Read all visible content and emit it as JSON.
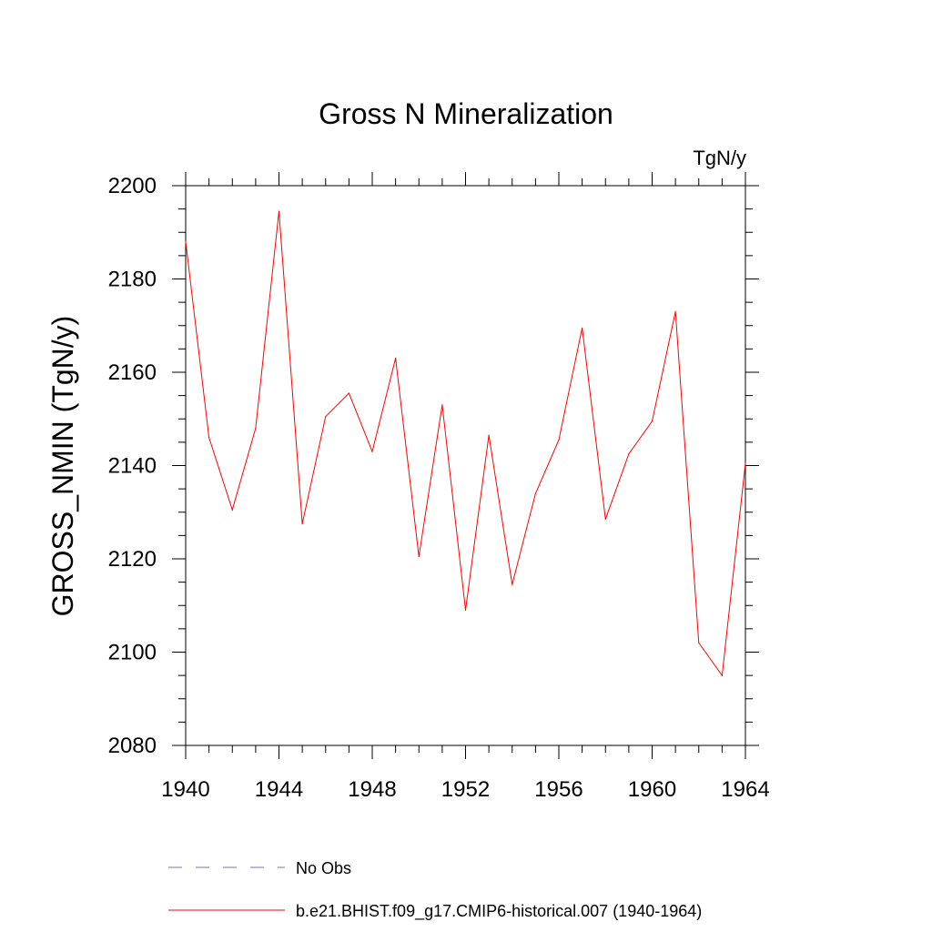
{
  "chart_data": {
    "type": "line",
    "title": "Gross N Mineralization",
    "units_label": "TgN/y",
    "ylabel": "GROSS_NMIN  (TgN/y)",
    "xlabel": "",
    "xlim": [
      1940,
      1964
    ],
    "ylim": [
      2080,
      2200
    ],
    "x_ticks": [
      "1940",
      "1944",
      "1948",
      "1952",
      "1956",
      "1960",
      "1964"
    ],
    "y_ticks": [
      "2080",
      "2100",
      "2120",
      "2140",
      "2160",
      "2180",
      "2200"
    ],
    "series": [
      {
        "name": "b.e21.BHIST.f09_g17.CMIP6-historical.007 (1940-1964)",
        "color": "#ff0000",
        "dash": "solid",
        "x": [
          1940,
          1941,
          1942,
          1943,
          1944,
          1945,
          1946,
          1947,
          1948,
          1949,
          1950,
          1951,
          1952,
          1953,
          1954,
          1955,
          1956,
          1957,
          1958,
          1959,
          1960,
          1961,
          1962,
          1963,
          1964
        ],
        "values": [
          2188,
          2146,
          2130.5,
          2148,
          2194.5,
          2127.5,
          2150.5,
          2155.5,
          2143,
          2163,
          2120.5,
          2153,
          2109,
          2146.5,
          2114.5,
          2134,
          2145.5,
          2169.5,
          2128.5,
          2142.5,
          2149.5,
          2173,
          2102,
          2095,
          2140.5
        ]
      }
    ],
    "legend": [
      {
        "label": "No Obs",
        "color": "#7b6fbf",
        "dash": "dashed"
      },
      {
        "label": "b.e21.BHIST.f09_g17.CMIP6-historical.007 (1940-1964)",
        "color": "#ff0000",
        "dash": "solid"
      }
    ]
  }
}
